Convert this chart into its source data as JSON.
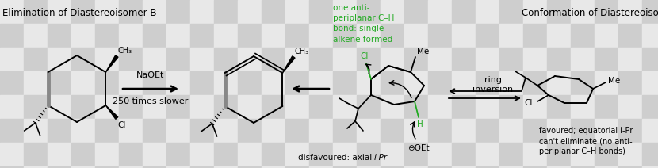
{
  "title_left": "Elimination of Diastereoisomer B",
  "title_right": "Conformation of Diastereoisomer B",
  "reagent": "NaOEt",
  "slower": "250 times slower",
  "green_text": "one anti-\nperiplanar C–H\nbond: single\nalkene formed",
  "ring_inversion": "ring\ninversion",
  "disfavoured": "disfavoured: axial ",
  "disfavoured_italic": "i-Pr",
  "favoured_text": "favoured; equatorial i-Pr\ncan't eliminate (no anti-\nperiplanar C–H bonds)",
  "label_Cl": "Cl",
  "label_CH3": "CH₃",
  "label_Me": "Me",
  "label_H": "H",
  "label_OEt": "⊖OEt",
  "bg_light": "#e8e8e8",
  "bg_dark": "#cecece",
  "green_color": "#22aa22",
  "black": "#000000",
  "gray": "#888888"
}
